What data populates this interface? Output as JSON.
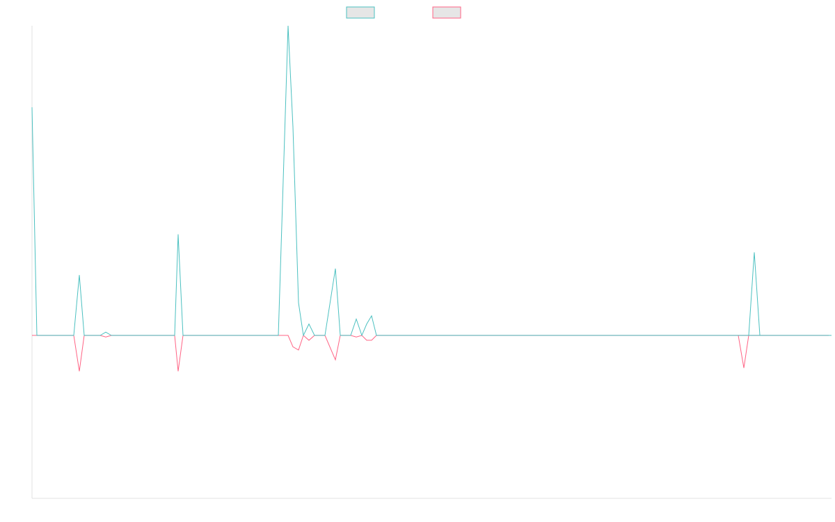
{
  "chart_data": {
    "type": "line",
    "title": "",
    "xlabel": "",
    "ylabel": "",
    "grid": false,
    "legend_position": "top-center",
    "ylim": [
      -100,
      190
    ],
    "series": [
      {
        "color": "#4bc0c0",
        "fill": "#e6e6e6",
        "values": [
          140,
          0,
          0,
          0,
          0,
          0,
          0,
          0,
          0,
          37,
          0,
          0,
          0,
          0,
          2,
          0,
          0,
          0,
          0,
          0,
          0,
          0,
          0,
          0,
          0,
          0,
          0,
          0,
          62,
          0,
          0,
          0,
          0,
          0,
          0,
          0,
          0,
          0,
          0,
          0,
          0,
          0,
          0,
          0,
          0,
          0,
          0,
          0,
          190,
          128,
          20,
          0,
          7,
          0,
          0,
          0,
          41,
          0,
          0,
          0,
          10,
          0,
          7,
          12,
          0,
          0,
          0,
          0,
          0,
          0,
          0,
          0,
          0,
          0,
          0,
          0,
          0,
          0,
          0,
          0,
          0,
          0,
          0,
          0,
          0,
          0,
          0,
          0,
          0,
          0,
          0,
          0,
          0,
          0,
          0,
          0,
          0,
          0,
          0,
          0,
          0,
          0,
          0,
          0,
          0,
          0,
          0,
          0,
          0,
          0,
          0,
          0,
          0,
          0,
          0,
          0,
          0,
          0,
          0,
          0,
          0,
          0,
          0,
          0,
          0,
          0,
          0,
          0,
          0,
          0,
          0,
          0,
          0,
          0,
          0,
          51,
          0,
          0,
          0,
          0,
          0,
          0,
          0,
          0,
          0,
          0,
          0,
          0,
          0,
          0,
          0,
          0,
          0,
          0,
          0,
          0,
          0,
          0,
          0,
          0,
          0,
          0,
          0,
          0,
          0,
          0,
          0,
          0,
          0,
          0,
          0,
          0,
          0,
          0,
          0,
          0,
          0,
          0,
          0,
          0,
          0,
          0,
          0,
          0,
          0,
          0,
          0,
          0,
          0,
          0,
          0,
          0,
          0,
          0,
          0,
          0,
          0,
          0,
          0,
          0,
          0,
          0,
          0,
          0,
          0,
          0,
          0,
          0,
          0,
          0,
          0,
          0,
          0,
          0,
          0,
          0,
          0,
          0,
          0,
          0,
          0,
          0,
          0,
          0,
          0,
          0,
          0,
          0,
          0,
          0,
          0,
          0,
          0,
          0,
          0,
          0,
          0,
          0,
          0,
          0,
          0
        ]
      },
      {
        "color": "#ff6384",
        "fill": "#e6e6e6",
        "values": [
          0,
          0,
          0,
          0,
          0,
          0,
          0,
          0,
          0,
          -22,
          0,
          0,
          0,
          0,
          -1,
          0,
          0,
          0,
          0,
          0,
          0,
          0,
          0,
          0,
          0,
          0,
          0,
          0,
          -22,
          0,
          0,
          0,
          0,
          0,
          0,
          0,
          0,
          0,
          0,
          0,
          0,
          0,
          0,
          0,
          0,
          0,
          0,
          0,
          0,
          -7,
          -9,
          0,
          -3,
          0,
          0,
          0,
          -15,
          0,
          0,
          0,
          -1,
          0,
          -3,
          -3,
          0,
          0,
          0,
          0,
          0,
          0,
          0,
          0,
          0,
          0,
          0,
          0,
          0,
          0,
          0,
          0,
          0,
          0,
          0,
          0,
          0,
          0,
          0,
          0,
          0,
          0,
          0,
          0,
          0,
          0,
          0,
          0,
          0,
          0,
          0,
          0,
          0,
          0,
          0,
          0,
          0,
          0,
          0,
          0,
          0,
          0,
          0,
          0,
          0,
          0,
          0,
          0,
          0,
          0,
          0,
          0,
          0,
          0,
          0,
          0,
          0,
          0,
          0,
          0,
          0,
          0,
          0,
          0,
          0,
          -20,
          0,
          0,
          0,
          0,
          0,
          0,
          0,
          0,
          0,
          0,
          0,
          0,
          0,
          0,
          0,
          0,
          0,
          0,
          0,
          0,
          0,
          0,
          0,
          0,
          0,
          0,
          0,
          0,
          0,
          0,
          0,
          0,
          0,
          0,
          0,
          0,
          0,
          0,
          0,
          0,
          0,
          0,
          0,
          0,
          0,
          0,
          0,
          0,
          0,
          0,
          0,
          0,
          0,
          0,
          0,
          0,
          0,
          0,
          0,
          0,
          0,
          0,
          0,
          0,
          0,
          0,
          0,
          0,
          0,
          0,
          0,
          0,
          0,
          0,
          0,
          0,
          0,
          0,
          0,
          0,
          0,
          0,
          0,
          0,
          0,
          0,
          0,
          0,
          0,
          0,
          0,
          0,
          0,
          0,
          0,
          0,
          0,
          0,
          0,
          0,
          0,
          0,
          0,
          0
        ]
      }
    ]
  }
}
